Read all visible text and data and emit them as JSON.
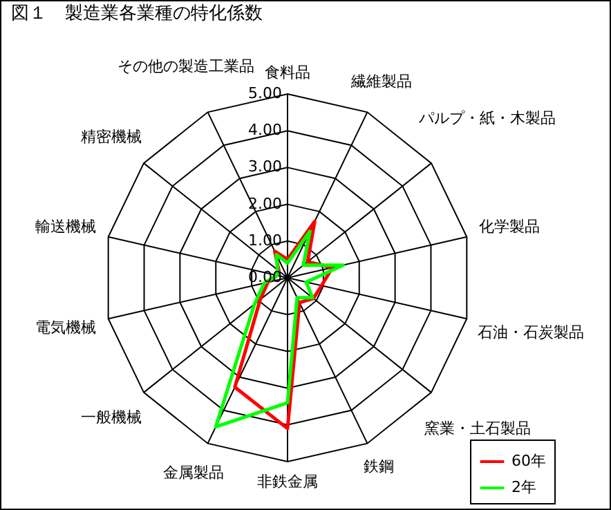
{
  "chart_data": {
    "type": "radar",
    "title": "図１　製造業各業種の特化係数",
    "categories": [
      "食料品",
      "繊維製品",
      "パルプ・紙・木製品",
      "化学製品",
      "石油・石炭製品",
      "窯業・土石製品",
      "鉄鋼",
      "非鉄金属",
      "金属製品",
      "一般機械",
      "電気機械",
      "輸送機械",
      "精密機械",
      "その他の製造工業品"
    ],
    "series": [
      {
        "name": "60年",
        "color": "#ff0000",
        "values": [
          0.5,
          1.7,
          0.7,
          1.25,
          0.95,
          0.9,
          0.75,
          4.1,
          3.3,
          0.95,
          0.55,
          0.3,
          0.3,
          0.8
        ]
      },
      {
        "name": "2年",
        "color": "#00ff00",
        "values": [
          0.4,
          1.4,
          0.55,
          1.55,
          0.52,
          0.87,
          0.6,
          3.4,
          4.5,
          1.15,
          0.65,
          0.3,
          0.35,
          0.7
        ]
      }
    ],
    "ylim": [
      0,
      5
    ],
    "yticks": [
      {
        "value": 0,
        "label": "0.00"
      },
      {
        "value": 1,
        "label": "1.00"
      },
      {
        "value": 2,
        "label": "2.00"
      },
      {
        "value": 3,
        "label": "3.00"
      },
      {
        "value": 4,
        "label": "4.00"
      },
      {
        "value": 5,
        "label": "5.00"
      }
    ],
    "grid": true,
    "legend": "bottom right"
  }
}
